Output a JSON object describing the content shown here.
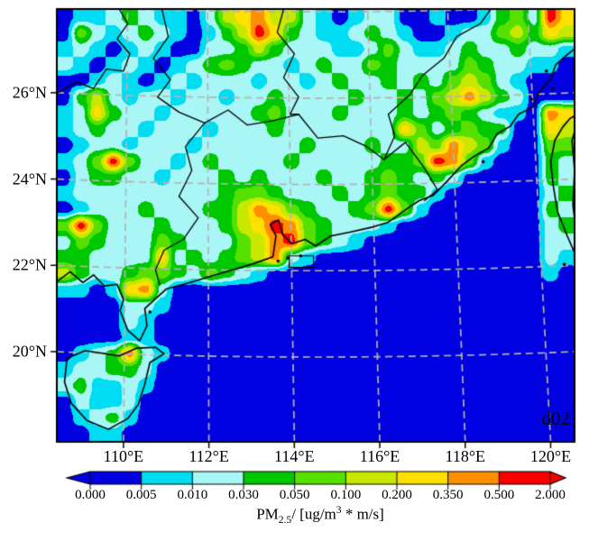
{
  "figure": {
    "background": "#ffffff"
  },
  "map": {
    "annotation": "d02",
    "frame_color": "#000000",
    "gridline_color": "#b5b3b3",
    "lon_range": [
      108.44,
      120.56
    ],
    "lat_range": [
      17.91,
      27.94
    ],
    "x_ticks": [
      {
        "lon": 110,
        "label": "110°E"
      },
      {
        "lon": 112,
        "label": "112°E"
      },
      {
        "lon": 114,
        "label": "114°E"
      },
      {
        "lon": 116,
        "label": "116°E"
      },
      {
        "lon": 118,
        "label": "118°E"
      },
      {
        "lon": 120,
        "label": "120°E"
      }
    ],
    "y_ticks": [
      {
        "lat": 26,
        "label": "26°N"
      },
      {
        "lat": 24,
        "label": "24°N"
      },
      {
        "lat": 22,
        "label": "22°N"
      },
      {
        "lat": 20,
        "label": "20°N"
      }
    ],
    "gridline_lons": [
      110,
      112,
      114,
      116,
      118,
      120
    ],
    "gridline_lats": [
      20,
      22,
      24,
      26,
      28
    ]
  },
  "colorbar": {
    "tick_labels": [
      "0.000",
      "0.005",
      "0.010",
      "0.030",
      "0.050",
      "0.100",
      "0.200",
      "0.350",
      "0.500",
      "2.000"
    ],
    "colors": [
      "#0000e0",
      "#00ddf2",
      "#a8f6f6",
      "#00c800",
      "#55e000",
      "#c8e800",
      "#ffe000",
      "#ff8e00",
      "#f80000"
    ],
    "title": {
      "prefix": "PM",
      "sub": "2.5",
      "mid": "/  [ug/m",
      "sup": "3",
      "suffix": " * m/s]"
    }
  },
  "chart_data": {
    "type": "heatmap",
    "variable": "PM2.5",
    "units": "ug/m3 * m/s",
    "title": "PM2.5/ [ug/m3 * m/s]",
    "xlabel_ticks": [
      "110°E",
      "112°E",
      "114°E",
      "116°E",
      "118°E",
      "120°E"
    ],
    "ylabel_ticks": [
      "26°N",
      "24°N",
      "22°N",
      "20°N"
    ],
    "level_bounds": [
      0.0,
      0.005,
      0.01,
      0.03,
      0.05,
      0.1,
      0.2,
      0.35,
      0.5,
      2.0
    ],
    "level_colors": [
      "#0000e0",
      "#00ddf2",
      "#a8f6f6",
      "#00c800",
      "#55e000",
      "#c8e800",
      "#ffe000",
      "#ff8e00",
      "#f80000"
    ],
    "legend_position": "bottom",
    "grid_note": "level-index field 0-8, 32 cols x 27 rows, row 0 = north (lat 27.94) to lat 17.91, col 0 = west (lon 108.44) to 120.56",
    "grid": {
      "ncols": 32,
      "nrows": 27,
      "rows": [
        "01123211025675521012200100134286",
        "04212321013586321123210012245365",
        "12101210022353222112421123223221",
        "21012101234322123224322224322110",
        "00121012122212212322323245421000",
        "03521221221223222232232457532000",
        "12632212222234222322232343211076",
        "12322122212223222222264234330065",
        "01221222122222232223225475410044",
        "12484221232222322222334874100032",
        "02332212223232223223432320000032",
        "12222222223443222323433100000023",
        "01222322233576432234841000000032",
        "48422232223568743222100000000023",
        "24322243222457843210000000000022",
        "33222262323457210000000000000021",
        "53223443243210000000000000000010",
        "11016720000000000000000000000000",
        "00002210000000000000000000000000",
        "00002100000000000000000000000000",
        "00001100000000000000000000000000",
        "01237210000000000000000000000000",
        "12233200000000000000000000000000",
        "23112100000000000000000000000000",
        "02112000000000000000000000000000",
        "01231000000000000000000000000000",
        "00110000000000000000000000000000"
      ]
    },
    "geo": {
      "coastlines": [
        [
          [
            108.44,
            21.62
          ],
          [
            108.75,
            21.85
          ],
          [
            109.05,
            21.6
          ],
          [
            109.3,
            21.78
          ],
          [
            109.55,
            21.52
          ],
          [
            109.85,
            21.56
          ],
          [
            110.0,
            21.2
          ],
          [
            109.92,
            20.95
          ],
          [
            110.1,
            20.5
          ],
          [
            110.38,
            20.25
          ],
          [
            110.55,
            20.6
          ],
          [
            110.5,
            21.0
          ],
          [
            110.72,
            21.2
          ],
          [
            111.0,
            21.45
          ],
          [
            111.55,
            21.6
          ],
          [
            112.05,
            21.75
          ],
          [
            112.65,
            21.92
          ],
          [
            113.08,
            22.05
          ],
          [
            113.5,
            22.2
          ],
          [
            113.57,
            22.68
          ],
          [
            113.44,
            22.95
          ],
          [
            113.63,
            23.05
          ],
          [
            113.73,
            22.7
          ],
          [
            113.95,
            22.5
          ],
          [
            114.25,
            22.6
          ],
          [
            114.5,
            22.45
          ],
          [
            114.85,
            22.68
          ],
          [
            115.35,
            22.78
          ],
          [
            115.8,
            22.88
          ],
          [
            116.2,
            23.0
          ],
          [
            116.65,
            23.32
          ],
          [
            116.92,
            23.5
          ],
          [
            117.25,
            23.62
          ],
          [
            117.55,
            23.92
          ],
          [
            117.9,
            24.3
          ],
          [
            118.2,
            24.52
          ],
          [
            118.55,
            24.72
          ],
          [
            118.75,
            25.05
          ],
          [
            119.05,
            25.22
          ],
          [
            119.25,
            25.5
          ],
          [
            119.6,
            25.68
          ],
          [
            119.72,
            26.0
          ],
          [
            120.0,
            26.32
          ],
          [
            120.12,
            26.65
          ],
          [
            120.35,
            26.85
          ],
          [
            120.56,
            27.02
          ]
        ],
        [
          [
            108.68,
            19.85
          ],
          [
            108.62,
            19.3
          ],
          [
            108.78,
            18.8
          ],
          [
            109.15,
            18.4
          ],
          [
            109.65,
            18.2
          ],
          [
            110.1,
            18.45
          ],
          [
            110.35,
            18.78
          ],
          [
            110.5,
            19.25
          ],
          [
            110.62,
            19.75
          ],
          [
            110.95,
            19.95
          ],
          [
            110.75,
            20.1
          ],
          [
            110.3,
            20.08
          ],
          [
            109.9,
            19.9
          ],
          [
            109.4,
            19.98
          ],
          [
            109.1,
            20.02
          ],
          [
            108.68,
            19.85
          ]
        ],
        [
          [
            120.62,
            25.5
          ],
          [
            120.45,
            25.4
          ],
          [
            120.28,
            25.2
          ],
          [
            120.1,
            24.9
          ],
          [
            120.0,
            24.4
          ],
          [
            120.06,
            23.85
          ],
          [
            120.16,
            23.25
          ],
          [
            120.38,
            22.7
          ],
          [
            120.58,
            22.25
          ],
          [
            120.62,
            22.05
          ]
        ],
        [
          [
            120.62,
            22.6
          ],
          [
            120.52,
            23.4
          ],
          [
            120.56,
            24.2
          ],
          [
            120.5,
            24.9
          ],
          [
            120.62,
            25.3
          ]
        ]
      ],
      "borders": [
        [
          [
            110.9,
            27.94
          ],
          [
            111.05,
            27.3
          ],
          [
            110.7,
            26.8
          ],
          [
            111.1,
            26.3
          ],
          [
            110.8,
            25.9
          ],
          [
            111.3,
            25.55
          ],
          [
            111.9,
            25.3
          ],
          [
            112.45,
            25.6
          ],
          [
            112.9,
            25.25
          ],
          [
            113.5,
            25.35
          ],
          [
            114.1,
            25.5
          ],
          [
            114.55,
            24.95
          ],
          [
            115.15,
            25.0
          ],
          [
            115.7,
            24.75
          ],
          [
            116.1,
            24.45
          ],
          [
            116.6,
            24.85
          ],
          [
            117.05,
            24.25
          ],
          [
            117.35,
            23.75
          ],
          [
            117.05,
            23.5
          ]
        ],
        [
          [
            111.9,
            25.3
          ],
          [
            111.45,
            24.75
          ],
          [
            111.6,
            24.2
          ],
          [
            111.3,
            23.6
          ],
          [
            111.75,
            23.1
          ],
          [
            111.4,
            22.6
          ],
          [
            110.95,
            22.35
          ],
          [
            110.75,
            21.9
          ],
          [
            110.85,
            21.55
          ]
        ],
        [
          [
            113.75,
            27.94
          ],
          [
            113.6,
            27.4
          ],
          [
            114.0,
            26.9
          ],
          [
            113.75,
            26.35
          ],
          [
            114.1,
            25.9
          ],
          [
            113.9,
            25.5
          ],
          [
            114.1,
            25.5
          ]
        ],
        [
          [
            116.1,
            24.45
          ],
          [
            116.35,
            25.0
          ],
          [
            116.2,
            25.5
          ],
          [
            116.7,
            25.95
          ],
          [
            117.0,
            26.4
          ],
          [
            117.5,
            26.8
          ],
          [
            117.8,
            27.3
          ],
          [
            118.35,
            27.6
          ],
          [
            118.6,
            27.94
          ]
        ],
        [
          [
            108.47,
            26.0
          ],
          [
            108.9,
            26.25
          ],
          [
            109.3,
            26.1
          ],
          [
            109.6,
            26.55
          ],
          [
            110.0,
            26.5
          ],
          [
            110.15,
            26.9
          ],
          [
            109.85,
            27.25
          ],
          [
            110.1,
            27.6
          ],
          [
            109.9,
            27.94
          ]
        ]
      ],
      "islands": [
        [
          113.85,
          22.17
        ],
        [
          114.15,
          22.22
        ],
        [
          113.62,
          22.1
        ],
        [
          119.9,
          26.5
        ],
        [
          120.05,
          26.1
        ],
        [
          119.55,
          25.85
        ],
        [
          118.42,
          24.4
        ],
        [
          120.32,
          22.02
        ],
        [
          110.62,
          20.92
        ]
      ],
      "box_annotation": [
        [
          113.88,
          22.22
        ],
        [
          114.45,
          21.95
        ]
      ]
    }
  }
}
